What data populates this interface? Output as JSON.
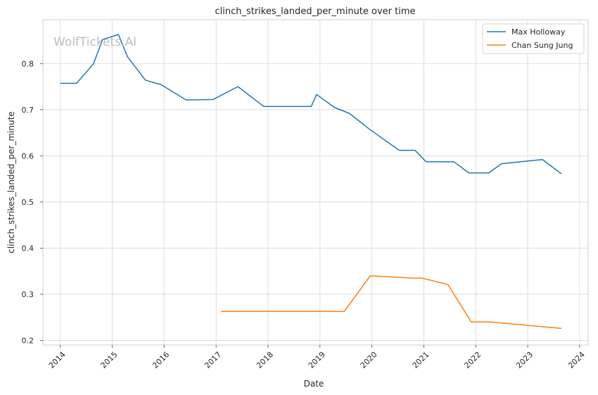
{
  "chart_data": {
    "type": "line",
    "title": "clinch_strikes_landed_per_minute over time",
    "xlabel": "Date",
    "ylabel": "clinch_strikes_landed_per_minute",
    "watermark": "WolfTickets.AI",
    "xlim": [
      "2013-09-01",
      "2024-03-01"
    ],
    "ylim": [
      0.19,
      0.895
    ],
    "x_ticks": [
      "2014-01-01",
      "2015-01-01",
      "2016-01-01",
      "2017-01-01",
      "2018-01-01",
      "2019-01-01",
      "2020-01-01",
      "2021-01-01",
      "2022-01-01",
      "2023-01-01",
      "2024-01-01"
    ],
    "x_tick_labels": [
      "2014",
      "2015",
      "2016",
      "2017",
      "2018",
      "2019",
      "2020",
      "2021",
      "2022",
      "2023",
      "2024"
    ],
    "y_ticks": [
      0.2,
      0.3,
      0.4,
      0.5,
      0.6,
      0.7,
      0.8
    ],
    "y_tick_labels": [
      "0.2",
      "0.3",
      "0.4",
      "0.5",
      "0.6",
      "0.7",
      "0.8"
    ],
    "grid": true,
    "legend_position": "top-right",
    "series": [
      {
        "name": "Max Holloway",
        "color": "#1f77b4",
        "x": [
          "2014-01-01",
          "2014-04-26",
          "2014-08-23",
          "2014-10-25",
          "2015-02-14",
          "2015-04-18",
          "2015-08-23",
          "2015-12-12",
          "2016-06-04",
          "2016-12-10",
          "2017-06-03",
          "2017-12-02",
          "2018-11-01",
          "2018-12-08",
          "2019-04-13",
          "2019-07-27",
          "2019-12-14",
          "2020-07-11",
          "2020-10-31",
          "2021-01-16",
          "2021-07-31",
          "2021-11-13",
          "2022-04-01",
          "2022-07-02",
          "2023-04-15",
          "2023-08-26"
        ],
        "y": [
          0.757,
          0.757,
          0.8,
          0.852,
          0.863,
          0.815,
          0.764,
          0.754,
          0.721,
          0.722,
          0.75,
          0.707,
          0.707,
          0.733,
          0.705,
          0.692,
          0.658,
          0.612,
          0.612,
          0.587,
          0.587,
          0.563,
          0.563,
          0.583,
          0.592,
          0.561
        ]
      },
      {
        "name": "Chan Sung Jung",
        "color": "#ff7f0e",
        "x": [
          "2017-02-04",
          "2018-11-10",
          "2019-06-22",
          "2019-12-21",
          "2019-12-22",
          "2020-10-17",
          "2020-12-19",
          "2021-06-19",
          "2021-11-30",
          "2022-04-09",
          "2023-08-26"
        ],
        "y": [
          0.263,
          0.263,
          0.263,
          0.34,
          0.34,
          0.335,
          0.335,
          0.321,
          0.24,
          0.24,
          0.226
        ]
      }
    ]
  }
}
